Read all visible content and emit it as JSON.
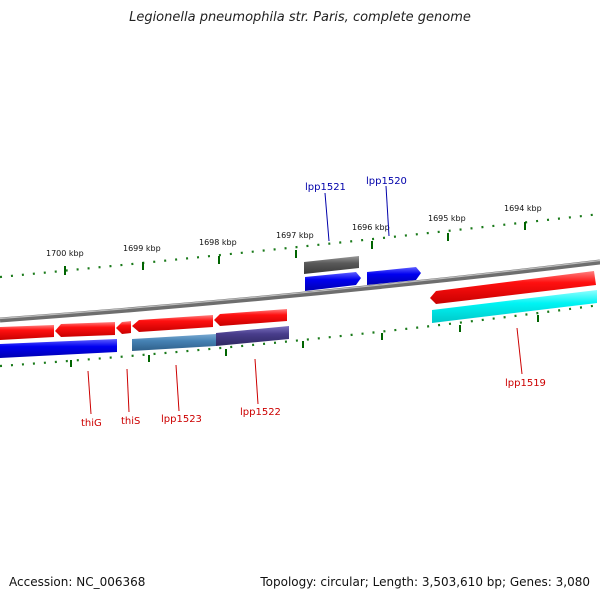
{
  "title": "Legionella pneumophila str. Paris, complete genome",
  "footer": {
    "accession": "Accession: NC_006368",
    "topology": "Topology: circular; Length: 3,503,610 bp; Genes: 3,080"
  },
  "kbp_labels": [
    "1700 kbp",
    "1699 kbp",
    "1698 kbp",
    "1697 kbp",
    "1696 kbp",
    "1695 kbp",
    "1694 kbp"
  ],
  "gene_labels": {
    "lpp1521": "lpp1521",
    "lpp1520": "lpp1520",
    "thiG": "thiG",
    "thiS": "thiS",
    "lpp1523": "lpp1523",
    "lpp1522": "lpp1522",
    "lpp1519": "lpp1519"
  },
  "colors": {
    "forward_gene": "#0000ee",
    "reverse_gene": "#ee0000",
    "cds_cyan": "#00eeee",
    "steel_blue": "#4682b4",
    "slate": "#483d8b",
    "gray": "#555555",
    "tick_green": "#006400",
    "label_red": "#cc0000",
    "label_blue": "#0000aa"
  }
}
